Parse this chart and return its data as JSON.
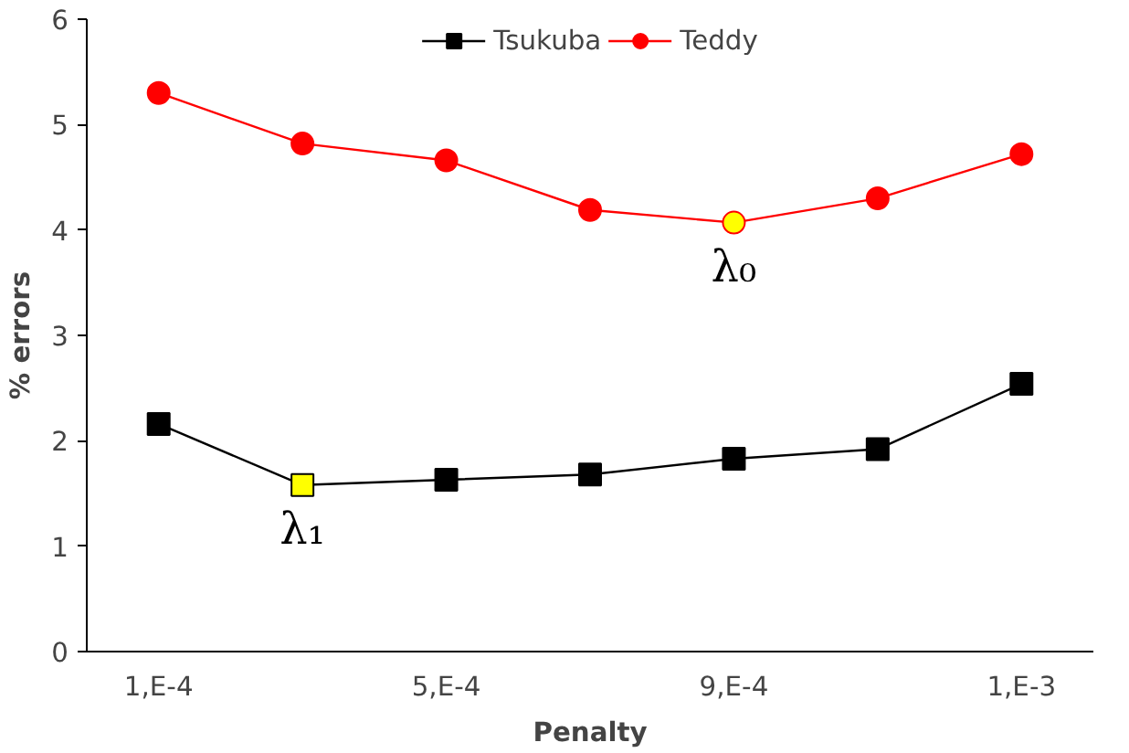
{
  "chart_data": {
    "type": "line",
    "xlabel": "Penalty",
    "ylabel": "% errors",
    "categories": [
      "1,E-4",
      null,
      "5,E-4",
      null,
      "9,E-4",
      null,
      "1,E-3"
    ],
    "series": [
      {
        "name": "Tsukuba",
        "color": "#000000",
        "marker": "square",
        "values": [
          2.16,
          1.58,
          1.63,
          1.68,
          1.83,
          1.92,
          2.54
        ],
        "colors": [
          "#000000",
          "#ffff00",
          "#000000",
          "#000000",
          "#000000",
          "#000000",
          "#000000"
        ]
      },
      {
        "name": "Teddy",
        "color": "#ff0000",
        "marker": "circle",
        "values": [
          5.3,
          4.82,
          4.66,
          4.19,
          4.07,
          4.3,
          4.72
        ],
        "colors": [
          "#ff0000",
          "#ff0000",
          "#ff0000",
          "#ff0000",
          "#ffff00",
          "#ff0000",
          "#ff0000"
        ]
      }
    ],
    "ylim": [
      0,
      6
    ],
    "yticks": [
      0,
      1,
      2,
      3,
      4,
      5,
      6
    ],
    "grid": false,
    "legend": "top",
    "annotations": [
      {
        "text": "λ₀",
        "x": "9,E-4",
        "y": 4.07
      },
      {
        "text": "λ₁",
        "y": 1.58
      }
    ]
  }
}
